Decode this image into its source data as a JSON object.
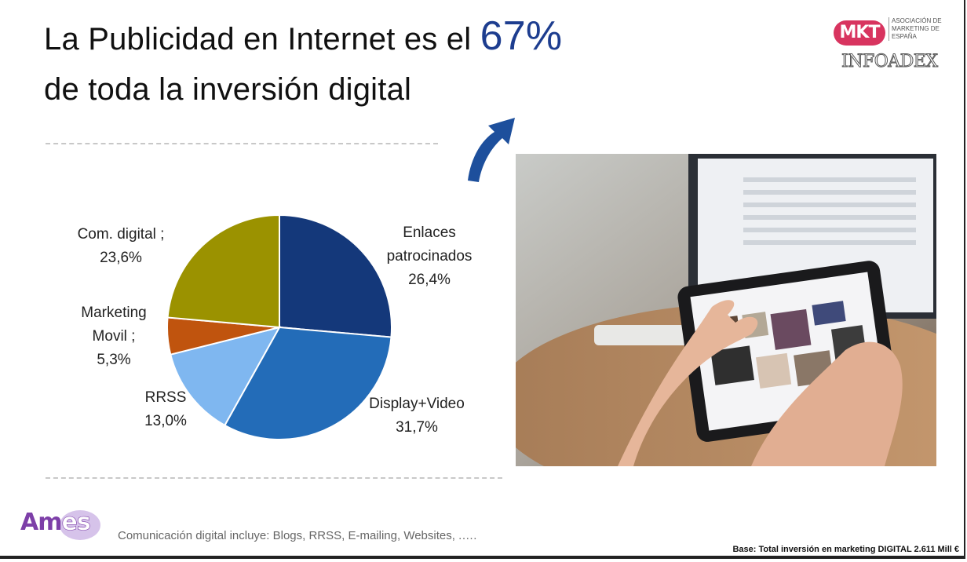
{
  "title": {
    "line1": "La Publicidad en Internet es el ",
    "highlight": "67%",
    "line2": "de toda la inversión digital"
  },
  "logos": {
    "mkt": "MKT",
    "mkt_assoc": "ASOCIACIÓN DE MARKETING DE ESPAÑA",
    "infoadex": "INFOADEX",
    "ames": "Ames"
  },
  "chart_data": {
    "type": "pie",
    "unit": "%",
    "slices": [
      {
        "label": "Enlaces patrocinados",
        "value": 26.4,
        "display": "26,4%",
        "color": "#14387a"
      },
      {
        "label": "Display+Video",
        "value": 31.7,
        "display": "31,7%",
        "color": "#236cb8"
      },
      {
        "label": "RRSS",
        "value": 13.0,
        "display": "13,0%",
        "color": "#7fb7f0"
      },
      {
        "label": "Marketing Movil",
        "value": 5.3,
        "display": "5,3%",
        "color": "#c0540e"
      },
      {
        "label": "Com. digital",
        "value": 23.6,
        "display": "23,6%",
        "color": "#9b9200"
      }
    ],
    "label_lines": [
      [
        "Enlaces",
        "patrocinados",
        "26,4%"
      ],
      [
        "Display+Video",
        "31,7%"
      ],
      [
        "RRSS",
        "13,0%"
      ],
      [
        "Marketing",
        "Movil  ;",
        "5,3%"
      ],
      [
        "Com. digital  ;",
        "23,6%"
      ]
    ]
  },
  "footnote": "Comunicación digital incluye: Blogs, RRSS, E-mailing, Websites, .….",
  "base_note": "Base: Total inversión en marketing DIGITAL 2.611 Mill €"
}
